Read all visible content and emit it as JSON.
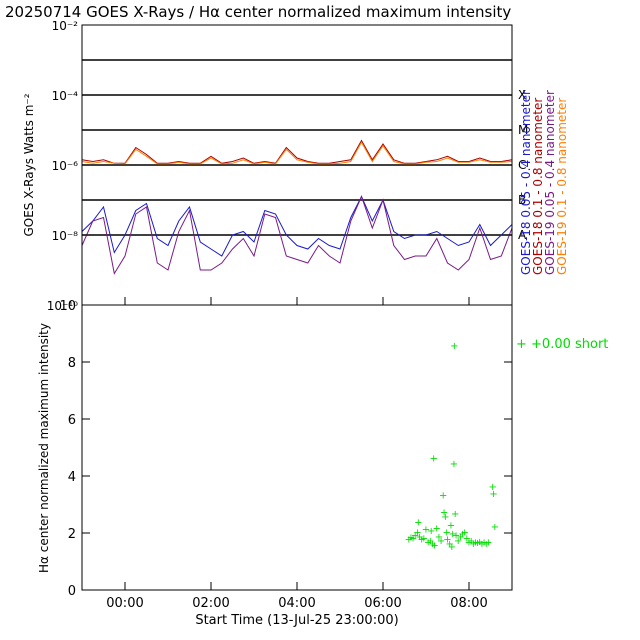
{
  "title": "20250714 GOES X-Rays / Hα center normalized maximum intensity",
  "colors": {
    "goes18_short": "#1a1acc",
    "goes18_long": "#aa0000",
    "goes19_short": "#7a1a8a",
    "goes19_long": "#ff7f00",
    "halpha": "#00dd00",
    "grid": "#000000"
  },
  "chart_data": [
    {
      "type": "line",
      "name": "goes-xray-flux",
      "ylabel": "GOES X-Rays Watts m⁻²",
      "yscale": "log",
      "ylim_exponent": [
        -10,
        -2
      ],
      "y_tick_labels": [
        "10⁻²",
        "10⁻⁴",
        "10⁻⁶",
        "10⁻⁸",
        "10⁻¹⁰"
      ],
      "y_tick_exponents": [
        -2,
        -4,
        -6,
        -8,
        -10
      ],
      "flare_class_labels": [
        "X",
        "M",
        "C",
        "B",
        "A"
      ],
      "flare_class_exponents": [
        -4,
        -5,
        -6,
        -7,
        -8
      ],
      "threshold_lines_exponent": [
        -3,
        -4,
        -5,
        -6,
        -7,
        -8
      ],
      "x_hours": [
        0.0,
        0.25,
        0.5,
        0.75,
        1.0,
        1.25,
        1.5,
        1.75,
        2.0,
        2.25,
        2.5,
        2.75,
        3.0,
        3.25,
        3.5,
        3.75,
        4.0,
        4.25,
        4.5,
        4.75,
        5.0,
        5.25,
        5.5,
        5.75,
        6.0,
        6.25,
        6.5,
        6.75,
        7.0,
        7.25,
        7.5,
        7.75,
        8.0,
        8.25,
        8.5,
        8.75,
        9.0,
        9.25,
        9.5,
        9.75,
        10.0
      ],
      "series": [
        {
          "name": "GOES-18 0.05 - 0.4 nanometer",
          "color_key": "goes18_short",
          "log_values": [
            -7.9,
            -7.6,
            -7.2,
            -8.5,
            -8.0,
            -7.3,
            -7.1,
            -8.1,
            -8.3,
            -7.6,
            -7.2,
            -8.2,
            -8.4,
            -8.6,
            -8.0,
            -7.9,
            -8.2,
            -7.3,
            -7.4,
            -8.0,
            -8.3,
            -8.4,
            -8.1,
            -8.3,
            -8.4,
            -7.5,
            -6.9,
            -7.6,
            -7.0,
            -7.9,
            -8.1,
            -8.0,
            -8.0,
            -7.9,
            -8.1,
            -8.3,
            -8.2,
            -7.7,
            -8.3,
            -8.0,
            -7.7
          ]
        },
        {
          "name": "GOES-18 0.1 - 0.8 nanometer",
          "color_key": "goes18_long",
          "log_values": [
            -5.85,
            -5.9,
            -5.85,
            -5.95,
            -5.95,
            -5.5,
            -5.7,
            -5.95,
            -5.95,
            -5.9,
            -5.95,
            -5.95,
            -5.75,
            -5.95,
            -5.9,
            -5.8,
            -5.95,
            -5.9,
            -5.95,
            -5.5,
            -5.8,
            -5.9,
            -5.95,
            -5.95,
            -5.9,
            -5.85,
            -5.3,
            -5.85,
            -5.4,
            -5.85,
            -5.95,
            -5.95,
            -5.9,
            -5.85,
            -5.75,
            -5.9,
            -5.9,
            -5.8,
            -5.9,
            -5.9,
            -5.85
          ]
        },
        {
          "name": "GOES-19 0.05 - 0.4 nanometer",
          "color_key": "goes19_short",
          "log_values": [
            -8.3,
            -7.6,
            -7.5,
            -9.1,
            -8.6,
            -7.4,
            -7.2,
            -8.8,
            -9.0,
            -7.9,
            -7.3,
            -9.0,
            -9.0,
            -8.8,
            -8.4,
            -8.1,
            -8.6,
            -7.4,
            -7.5,
            -8.6,
            -8.7,
            -8.8,
            -8.3,
            -8.6,
            -8.8,
            -7.6,
            -6.9,
            -7.8,
            -7.0,
            -8.3,
            -8.7,
            -8.6,
            -8.6,
            -8.1,
            -8.8,
            -9.0,
            -8.7,
            -7.8,
            -8.7,
            -8.6,
            -7.8
          ]
        },
        {
          "name": "GOES-19 0.1 - 0.8 nanometer",
          "color_key": "goes19_long",
          "log_values": [
            -5.9,
            -5.95,
            -5.9,
            -5.95,
            -5.97,
            -5.55,
            -5.75,
            -5.97,
            -5.97,
            -5.92,
            -5.97,
            -5.97,
            -5.8,
            -5.97,
            -5.95,
            -5.85,
            -5.97,
            -5.92,
            -5.97,
            -5.55,
            -5.85,
            -5.92,
            -5.97,
            -5.97,
            -5.95,
            -5.9,
            -5.35,
            -5.9,
            -5.45,
            -5.9,
            -5.97,
            -5.97,
            -5.92,
            -5.9,
            -5.8,
            -5.92,
            -5.92,
            -5.85,
            -5.92,
            -5.92,
            -5.9
          ]
        }
      ]
    },
    {
      "type": "scatter",
      "name": "halpha-intensity",
      "ylabel": "Hα center normalized maximum intensity",
      "xlabel": "Start Time (13-Jul-25 23:00:00)",
      "ylim": [
        0,
        10
      ],
      "y_ticks": [
        0,
        2,
        4,
        6,
        8,
        10
      ],
      "x_tick_labels": [
        "00:00",
        "02:00",
        "04:00",
        "06:00",
        "08:00"
      ],
      "x_tick_hours": [
        1,
        3,
        5,
        7,
        9
      ],
      "xlim_hours": [
        0,
        10
      ],
      "legend": "+  +0.00 short",
      "legend_position": "right",
      "points": [
        {
          "x": 7.6,
          "y": 1.8
        },
        {
          "x": 7.65,
          "y": 1.88
        },
        {
          "x": 7.7,
          "y": 1.85
        },
        {
          "x": 7.75,
          "y": 1.95
        },
        {
          "x": 7.8,
          "y": 2.05
        },
        {
          "x": 7.82,
          "y": 2.4
        },
        {
          "x": 7.85,
          "y": 1.9
        },
        {
          "x": 7.9,
          "y": 1.8
        },
        {
          "x": 7.95,
          "y": 1.85
        },
        {
          "x": 8.0,
          "y": 2.15
        },
        {
          "x": 8.05,
          "y": 1.7
        },
        {
          "x": 8.1,
          "y": 1.75
        },
        {
          "x": 8.12,
          "y": 2.1
        },
        {
          "x": 8.15,
          "y": 1.65
        },
        {
          "x": 8.18,
          "y": 4.65
        },
        {
          "x": 8.2,
          "y": 1.6
        },
        {
          "x": 8.25,
          "y": 2.2
        },
        {
          "x": 8.3,
          "y": 1.9
        },
        {
          "x": 8.35,
          "y": 1.75
        },
        {
          "x": 8.4,
          "y": 3.35
        },
        {
          "x": 8.42,
          "y": 2.75
        },
        {
          "x": 8.45,
          "y": 2.6
        },
        {
          "x": 8.48,
          "y": 2.05
        },
        {
          "x": 8.5,
          "y": 1.8
        },
        {
          "x": 8.55,
          "y": 1.65
        },
        {
          "x": 8.58,
          "y": 2.3
        },
        {
          "x": 8.6,
          "y": 1.55
        },
        {
          "x": 8.62,
          "y": 2.0
        },
        {
          "x": 8.65,
          "y": 4.45
        },
        {
          "x": 8.66,
          "y": 8.6
        },
        {
          "x": 8.68,
          "y": 2.7
        },
        {
          "x": 8.7,
          "y": 1.95
        },
        {
          "x": 8.75,
          "y": 1.75
        },
        {
          "x": 8.8,
          "y": 1.9
        },
        {
          "x": 8.85,
          "y": 2.0
        },
        {
          "x": 8.9,
          "y": 2.05
        },
        {
          "x": 8.95,
          "y": 1.85
        },
        {
          "x": 9.0,
          "y": 1.7
        },
        {
          "x": 9.05,
          "y": 1.75
        },
        {
          "x": 9.1,
          "y": 1.65
        },
        {
          "x": 9.15,
          "y": 1.7
        },
        {
          "x": 9.2,
          "y": 1.68
        },
        {
          "x": 9.25,
          "y": 1.72
        },
        {
          "x": 9.3,
          "y": 1.65
        },
        {
          "x": 9.35,
          "y": 1.7
        },
        {
          "x": 9.4,
          "y": 1.65
        },
        {
          "x": 9.45,
          "y": 1.7
        },
        {
          "x": 9.55,
          "y": 3.65
        },
        {
          "x": 9.57,
          "y": 3.4
        },
        {
          "x": 9.6,
          "y": 2.25
        }
      ]
    }
  ]
}
